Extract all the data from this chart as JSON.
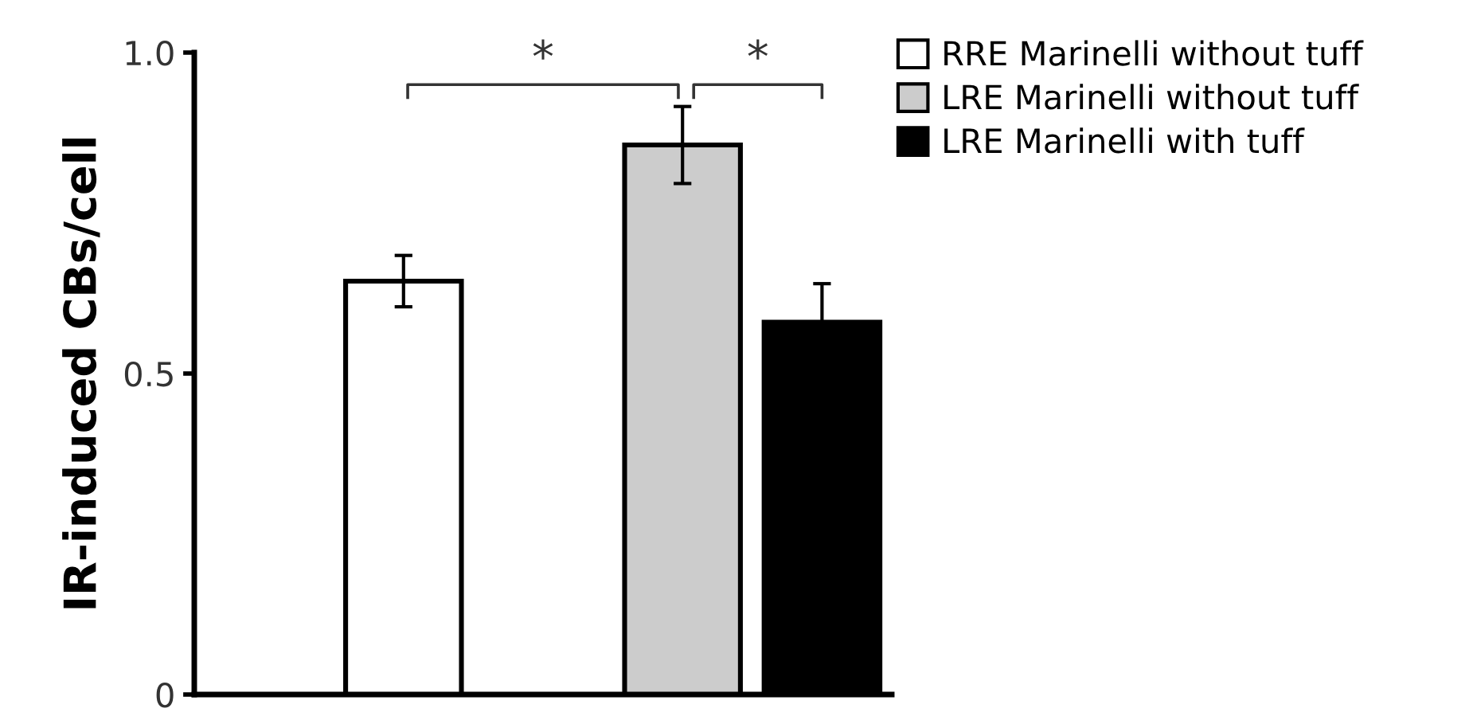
{
  "chart_data": {
    "type": "bar",
    "ylabel": "IR-induced CBs/cell",
    "categories": [
      null,
      null,
      null,
      null,
      null
    ],
    "series": [
      {
        "name": "RRE Marinelli without tuff",
        "color": "#ffffff",
        "values": [
          null,
          0.644,
          null,
          null,
          null
        ],
        "errors": [
          null,
          0.04,
          null,
          null,
          null
        ]
      },
      {
        "name": "LRE Marinelli without tuff",
        "color": "#cccccc",
        "values": [
          null,
          null,
          null,
          0.856,
          null
        ],
        "errors": [
          null,
          null,
          null,
          0.06,
          null
        ]
      },
      {
        "name": "LRE Marinelli with tuff",
        "color": "#000000",
        "values": [
          null,
          null,
          null,
          null,
          0.58
        ],
        "errors": [
          null,
          null,
          null,
          null,
          0.06
        ]
      }
    ],
    "ylim": [
      0,
      1.0
    ],
    "yticks": [
      0,
      0.5,
      {
        "value": 1.0,
        "label": "1.0"
      }
    ],
    "annotations": [
      "*",
      "*"
    ],
    "legend": "top right",
    "grid": false
  }
}
